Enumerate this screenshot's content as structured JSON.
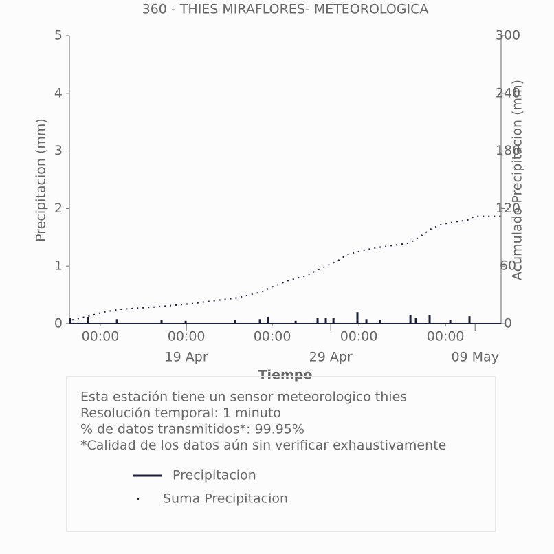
{
  "chart_data": {
    "type": "line",
    "title": "360 - THIES MIRAFLORES- METEOROLOGICA",
    "x_label": "Tiempo",
    "y_label": "Precipitacion (mm)",
    "y2_label": "Acumulado Precipitacion (mm)",
    "xlim": [
      0,
      29.9
    ],
    "xticks": [
      {
        "value": 2.14,
        "label": "00:00"
      },
      {
        "value": 8.1,
        "label": "00:00"
      },
      {
        "value": 14.05,
        "label": "00:00"
      },
      {
        "value": 20.05,
        "label": "00:00"
      },
      {
        "value": 26.05,
        "label": "00:00"
      }
    ],
    "xticks_major": [
      {
        "value": 8.1,
        "label": "19 Apr"
      },
      {
        "value": 18.1,
        "label": "29 Apr"
      },
      {
        "value": 28.1,
        "label": "09 May"
      }
    ],
    "ylim": [
      0,
      5
    ],
    "yticks": [
      0,
      1,
      2,
      3,
      4,
      5
    ],
    "y2lim": [
      0,
      300
    ],
    "y2ticks": [
      0,
      60,
      120,
      180,
      240,
      300
    ],
    "series": [
      {
        "name": "Precipitacion",
        "color": "#1b1f3b",
        "style": "stem",
        "x": [
          0.05,
          1.29,
          3.29,
          6.38,
          8.05,
          11.48,
          13.19,
          13.76,
          15.67,
          17.19,
          17.76,
          18.29,
          19.95,
          20.57,
          21.52,
          23.62,
          24.0,
          24.95,
          26.38,
          27.71
        ],
        "values": [
          0.1,
          0.12,
          0.08,
          0.06,
          0.05,
          0.07,
          0.08,
          0.12,
          0.05,
          0.1,
          0.1,
          0.1,
          0.2,
          0.08,
          0.07,
          0.15,
          0.1,
          0.15,
          0.06,
          0.13
        ]
      },
      {
        "name": "Suma Precipitacion",
        "color": "#1b1f3b",
        "style": "dotted",
        "axis": "y2",
        "x": [
          0.19,
          1.38,
          2.33,
          3.52,
          6.38,
          8.52,
          9.48,
          11.62,
          13.29,
          14.0,
          15.19,
          16.38,
          17.33,
          18.52,
          19.24,
          20.19,
          21.14,
          22.1,
          23.52,
          24.24,
          24.95,
          25.67,
          26.62,
          27.57,
          28.05,
          29.9
        ],
        "values": [
          4,
          8,
          12,
          15,
          18,
          21,
          23,
          27,
          33,
          38,
          45,
          50,
          57,
          65,
          72,
          76,
          79,
          81,
          84,
          90,
          98,
          103,
          106,
          108,
          112,
          112
        ]
      }
    ],
    "notes": [
      "Esta estación tiene un sensor meteorologico thies",
      "Resolución temporal: 1 minuto",
      "% de datos transmitidos*: 99.95%",
      "*Calidad de los datos aún sin verificar exhaustivamente"
    ]
  }
}
